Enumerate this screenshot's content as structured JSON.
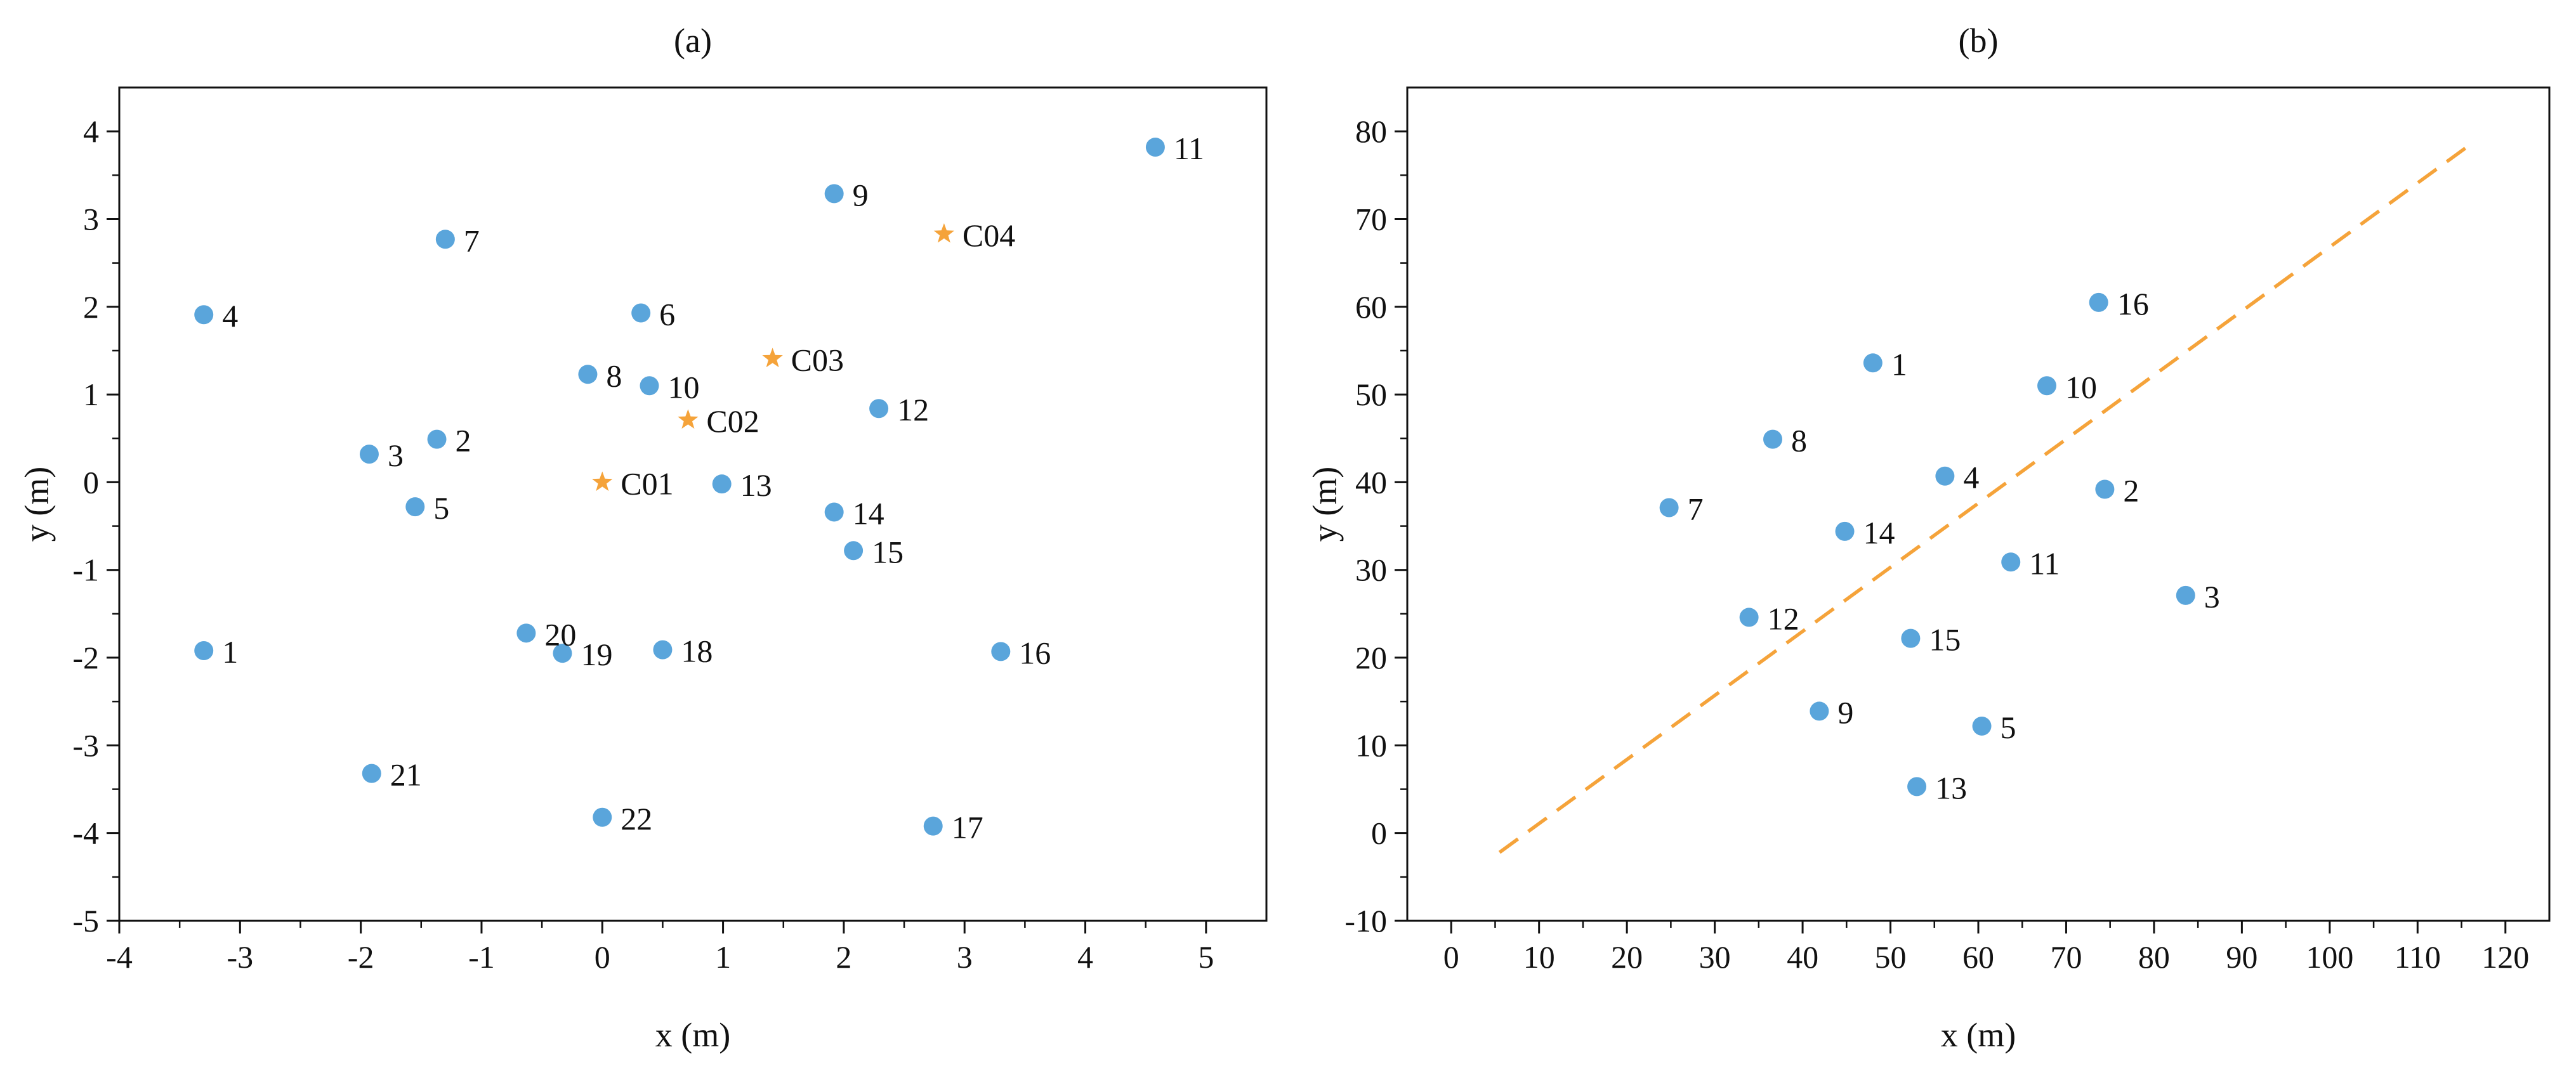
{
  "chart_data": [
    {
      "type": "scatter",
      "title": "(a)",
      "xlabel": "x (m)",
      "ylabel": "y (m)",
      "xlim": [
        -4,
        5.5
      ],
      "ylim": [
        -5,
        4.5
      ],
      "xticks": [
        -4,
        -3,
        -2,
        -1,
        0,
        1,
        2,
        3,
        4,
        5
      ],
      "yticks": [
        -5,
        -4,
        -3,
        -2,
        -1,
        0,
        1,
        2,
        3,
        4
      ],
      "xtick_labels": [
        "-4",
        "-3",
        "-2",
        "-1",
        "0",
        "1",
        "2",
        "3",
        "4",
        "5"
      ],
      "ytick_labels": [
        "-5",
        "-4",
        "-3",
        "-2",
        "-1",
        "0",
        "1",
        "2",
        "3",
        "4"
      ],
      "grid": false,
      "series": [
        {
          "name": "points",
          "marker": "circle",
          "color": "#5aa5db",
          "points": [
            {
              "label": "1",
              "x": -3.3,
              "y": -1.92
            },
            {
              "label": "2",
              "x": -1.37,
              "y": 0.49
            },
            {
              "label": "3",
              "x": -1.93,
              "y": 0.32
            },
            {
              "label": "4",
              "x": -3.3,
              "y": 1.91
            },
            {
              "label": "5",
              "x": -1.55,
              "y": -0.28
            },
            {
              "label": "6",
              "x": 0.32,
              "y": 1.93
            },
            {
              "label": "7",
              "x": -1.3,
              "y": 2.77
            },
            {
              "label": "8",
              "x": -0.12,
              "y": 1.23
            },
            {
              "label": "9",
              "x": 1.92,
              "y": 3.29
            },
            {
              "label": "10",
              "x": 0.39,
              "y": 1.1
            },
            {
              "label": "11",
              "x": 4.58,
              "y": 3.82
            },
            {
              "label": "12",
              "x": 2.29,
              "y": 0.84
            },
            {
              "label": "13",
              "x": 0.99,
              "y": -0.02
            },
            {
              "label": "14",
              "x": 1.92,
              "y": -0.34
            },
            {
              "label": "15",
              "x": 2.08,
              "y": -0.78
            },
            {
              "label": "16",
              "x": 3.3,
              "y": -1.93
            },
            {
              "label": "17",
              "x": 2.74,
              "y": -3.92
            },
            {
              "label": "18",
              "x": 0.5,
              "y": -1.91
            },
            {
              "label": "19",
              "x": -0.33,
              "y": -1.95
            },
            {
              "label": "20",
              "x": -0.63,
              "y": -1.72
            },
            {
              "label": "21",
              "x": -1.91,
              "y": -3.32
            },
            {
              "label": "22",
              "x": 0.0,
              "y": -3.82
            }
          ]
        },
        {
          "name": "centers",
          "marker": "star",
          "color": "#f5a33a",
          "points": [
            {
              "label": "C01",
              "x": 0.0,
              "y": 0.0
            },
            {
              "label": "C02",
              "x": 0.71,
              "y": 0.71
            },
            {
              "label": "C03",
              "x": 1.41,
              "y": 1.41
            },
            {
              "label": "C04",
              "x": 2.83,
              "y": 2.83
            }
          ]
        }
      ]
    },
    {
      "type": "scatter",
      "title": "(b)",
      "xlabel": "x (m)",
      "ylabel": "y (m)",
      "xlim": [
        -5,
        125
      ],
      "ylim": [
        -10,
        85
      ],
      "xticks": [
        0,
        10,
        20,
        30,
        40,
        50,
        60,
        70,
        80,
        90,
        100,
        110,
        120
      ],
      "yticks": [
        -10,
        0,
        10,
        20,
        30,
        40,
        50,
        60,
        70,
        80
      ],
      "xtick_labels": [
        "0",
        "10",
        "20",
        "30",
        "40",
        "50",
        "60",
        "70",
        "80",
        "90",
        "100",
        "110",
        "120"
      ],
      "ytick_labels": [
        "-10",
        "0",
        "10",
        "20",
        "30",
        "40",
        "50",
        "60",
        "70",
        "80"
      ],
      "grid": false,
      "series": [
        {
          "name": "points",
          "marker": "circle",
          "color": "#5aa5db",
          "points": [
            {
              "label": "1",
              "x": 48.0,
              "y": 53.6
            },
            {
              "label": "2",
              "x": 74.4,
              "y": 39.2
            },
            {
              "label": "3",
              "x": 83.6,
              "y": 27.1
            },
            {
              "label": "4",
              "x": 56.2,
              "y": 40.7
            },
            {
              "label": "5",
              "x": 60.4,
              "y": 12.2
            },
            {
              "label": "7",
              "x": 24.8,
              "y": 37.1
            },
            {
              "label": "8",
              "x": 36.6,
              "y": 44.9
            },
            {
              "label": "9",
              "x": 41.9,
              "y": 13.9
            },
            {
              "label": "10",
              "x": 67.8,
              "y": 51.0
            },
            {
              "label": "11",
              "x": 63.7,
              "y": 30.9
            },
            {
              "label": "12",
              "x": 33.9,
              "y": 24.6
            },
            {
              "label": "13",
              "x": 53.0,
              "y": 5.3
            },
            {
              "label": "14",
              "x": 44.8,
              "y": 34.4
            },
            {
              "label": "15",
              "x": 52.3,
              "y": 22.2
            },
            {
              "label": "16",
              "x": 73.7,
              "y": 60.5
            }
          ]
        },
        {
          "name": "trend",
          "type": "line",
          "style": "dashed",
          "color": "#f5a33a",
          "x": [
            5.5,
            116.0
          ],
          "y": [
            -2.2,
            78.5
          ]
        }
      ]
    }
  ]
}
